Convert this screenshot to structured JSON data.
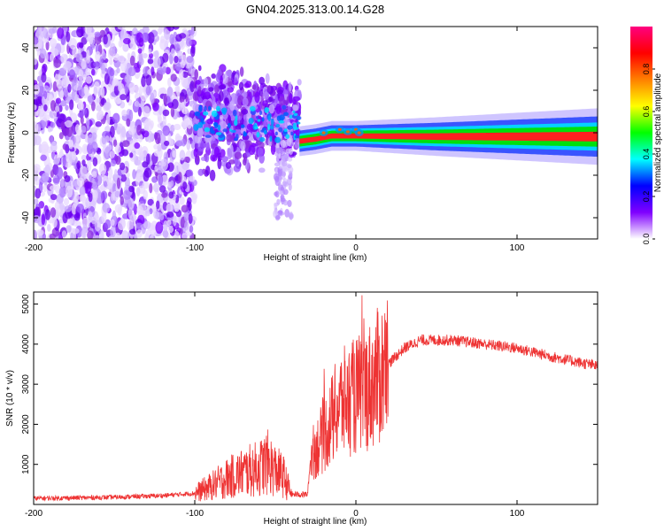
{
  "title": "GN04.2025.313.00.14.G28",
  "chart_data": [
    {
      "type": "heatmap",
      "xlabel": "Height of straight line (km)",
      "ylabel": "Frequency (Hz)",
      "xlim": [
        -200,
        150
      ],
      "ylim": [
        -50,
        50
      ],
      "x_ticks": [
        -200,
        -100,
        0,
        100
      ],
      "y_ticks": [
        -40,
        -20,
        0,
        20,
        40
      ],
      "colorbar": {
        "label": "Normalized spectral amplitude",
        "range": [
          0,
          1
        ],
        "ticks": [
          "0.0",
          "0.2",
          "0.4",
          "0.6",
          "0.8"
        ],
        "colors": [
          "#ffffff",
          "#8000ff",
          "#0000ff",
          "#00ffff",
          "#00ff00",
          "#ffff00",
          "#ff8000",
          "#ff0000",
          "#ff0080"
        ]
      },
      "ridge": [
        {
          "x": -35,
          "y": -4
        },
        {
          "x": -25,
          "y": -3
        },
        {
          "x": -15,
          "y": -1.5
        },
        {
          "x": 0,
          "y": -1.5
        },
        {
          "x": 50,
          "y": -1.8
        },
        {
          "x": 100,
          "y": -1.8
        },
        {
          "x": 150,
          "y": -1.8
        }
      ]
    },
    {
      "type": "line",
      "xlabel": "Height of straight line (km)",
      "ylabel": "SNR (10 * v/v)",
      "xlim": [
        -200,
        150
      ],
      "ylim": [
        0,
        5300
      ],
      "x_ticks": [
        -200,
        -100,
        0,
        100
      ],
      "y_ticks": [
        1000,
        2000,
        3000,
        4000,
        5000
      ],
      "color": "#ee3333",
      "envelope": [
        {
          "x": -200,
          "y": 150
        },
        {
          "x": -150,
          "y": 180
        },
        {
          "x": -120,
          "y": 220
        },
        {
          "x": -100,
          "y": 280
        },
        {
          "x": -90,
          "y": 450
        },
        {
          "x": -80,
          "y": 650
        },
        {
          "x": -70,
          "y": 800
        },
        {
          "x": -60,
          "y": 900
        },
        {
          "x": -55,
          "y": 1050
        },
        {
          "x": -50,
          "y": 850
        },
        {
          "x": -45,
          "y": 700
        },
        {
          "x": -40,
          "y": 250
        },
        {
          "x": -30,
          "y": 250
        },
        {
          "x": -28,
          "y": 1200
        },
        {
          "x": -20,
          "y": 1700
        },
        {
          "x": -15,
          "y": 2100
        },
        {
          "x": -10,
          "y": 2500
        },
        {
          "x": 0,
          "y": 2700
        },
        {
          "x": 10,
          "y": 3000
        },
        {
          "x": 20,
          "y": 3500
        },
        {
          "x": 30,
          "y": 3900
        },
        {
          "x": 40,
          "y": 4100
        },
        {
          "x": 60,
          "y": 4100
        },
        {
          "x": 80,
          "y": 4000
        },
        {
          "x": 100,
          "y": 3900
        },
        {
          "x": 120,
          "y": 3700
        },
        {
          "x": 150,
          "y": 3450
        }
      ]
    }
  ]
}
